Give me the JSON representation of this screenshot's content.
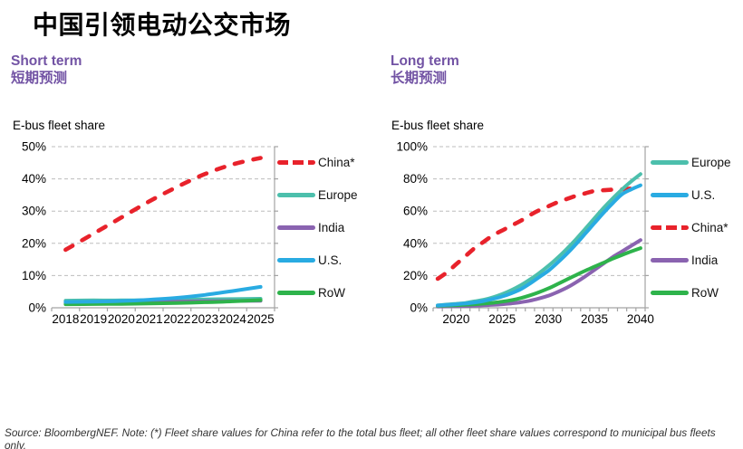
{
  "page": {
    "title": "中国引领电动公交市场",
    "source_note": "Source: BloombergNEF. Note: (*) Fleet share values for China refer to the total bus fleet; all other fleet share values correspond to municipal bus fleets only."
  },
  "colors": {
    "heading_purple": "#7253a4",
    "china_red": "#e8222b",
    "europe_teal": "#4cbfac",
    "us_blue": "#29abe2",
    "india_purple": "#8a63b0",
    "row_green": "#2eb34b",
    "grid_gray": "#bdbdbd",
    "axis_gray": "#a3a3a3",
    "tick_text": "#000000"
  },
  "chart_data": [
    {
      "id": "short-term",
      "type": "line",
      "title": "Short term",
      "title_zh": "短期预测",
      "axis_label": "E-bus fleet share",
      "x": [
        2018,
        2019,
        2020,
        2021,
        2022,
        2023,
        2024,
        2025
      ],
      "labeled_years": [
        2018,
        2019,
        2020,
        2021,
        2022,
        2023,
        2024,
        2025
      ],
      "ylim": [
        0,
        50
      ],
      "y_ticks": [
        0,
        10,
        20,
        30,
        40,
        50
      ],
      "grid": "horizontal-dashed",
      "legend_position": "right",
      "legend": [
        "China*",
        "Europe",
        "India",
        "U.S.",
        "RoW"
      ],
      "draw_order": [
        "China*",
        "Europe",
        "India",
        "RoW",
        "U.S."
      ],
      "series": [
        {
          "name": "China*",
          "color": "#e8222b",
          "dash": true,
          "values": [
            18,
            23,
            28,
            33,
            37.5,
            41.5,
            44.5,
            46.5
          ]
        },
        {
          "name": "Europe",
          "color": "#4cbfac",
          "dash": false,
          "values": [
            2.2,
            2.3,
            2.3,
            2.4,
            2.5,
            2.6,
            2.7,
            2.8
          ]
        },
        {
          "name": "India",
          "color": "#8a63b0",
          "dash": false,
          "values": [
            1.6,
            1.65,
            1.7,
            1.8,
            1.9,
            2.0,
            2.1,
            2.2
          ]
        },
        {
          "name": "U.S.",
          "color": "#29abe2",
          "dash": false,
          "values": [
            1.8,
            1.9,
            2.1,
            2.5,
            3.1,
            4.0,
            5.2,
            6.5
          ]
        },
        {
          "name": "RoW",
          "color": "#2eb34b",
          "dash": false,
          "values": [
            1.1,
            1.15,
            1.2,
            1.35,
            1.5,
            1.7,
            2.0,
            2.4
          ]
        }
      ]
    },
    {
      "id": "long-term",
      "type": "line",
      "title": "Long term",
      "title_zh": "长期预测",
      "axis_label": "E-bus fleet share",
      "x": [
        2018,
        2019,
        2020,
        2021,
        2022,
        2023,
        2024,
        2025,
        2026,
        2027,
        2028,
        2029,
        2030,
        2031,
        2032,
        2033,
        2034,
        2035,
        2036,
        2037,
        2038,
        2039,
        2040
      ],
      "labeled_years": [
        2020,
        2025,
        2030,
        2035,
        2040
      ],
      "ylim": [
        0,
        100
      ],
      "y_ticks": [
        0,
        20,
        40,
        60,
        80,
        100
      ],
      "grid": "horizontal-dashed",
      "legend_position": "right",
      "legend": [
        "Europe",
        "U.S.",
        "China*",
        "India",
        "RoW"
      ],
      "draw_order": [
        "China*",
        "India",
        "RoW",
        "Europe",
        "U.S."
      ],
      "series": [
        {
          "name": "Europe",
          "color": "#4cbfac",
          "dash": false,
          "values": [
            1.5,
            2,
            2.5,
            3,
            4,
            5,
            6.5,
            8.5,
            11,
            14,
            17.5,
            21.5,
            26,
            31,
            36.5,
            42.5,
            49,
            55.5,
            62,
            68,
            73.5,
            78.5,
            83
          ]
        },
        {
          "name": "U.S.",
          "color": "#29abe2",
          "dash": false,
          "values": [
            1.5,
            1.8,
            2.2,
            2.7,
            3.3,
            4.2,
            5.5,
            7,
            9,
            11.5,
            15,
            19,
            23,
            28,
            33.5,
            39.5,
            46,
            52.5,
            59,
            65,
            70.5,
            73.5,
            76
          ]
        },
        {
          "name": "China*",
          "color": "#e8222b",
          "dash": true,
          "values": [
            18,
            22,
            27,
            32,
            37,
            41,
            45,
            48,
            51,
            54,
            57.5,
            60.5,
            63,
            65.5,
            67.5,
            69.5,
            71,
            72.5,
            73,
            73.3,
            73.5,
            74,
            75
          ]
        },
        {
          "name": "India",
          "color": "#8a63b0",
          "dash": false,
          "values": [
            0.8,
            0.9,
            1,
            1.1,
            1.3,
            1.5,
            1.8,
            2.2,
            2.7,
            3.4,
            4.4,
            5.8,
            7.5,
            9.8,
            12.5,
            15.8,
            19.5,
            23.5,
            27.5,
            31.5,
            35,
            38.5,
            42
          ]
        },
        {
          "name": "RoW",
          "color": "#2eb34b",
          "dash": false,
          "values": [
            1.2,
            1.4,
            1.6,
            1.9,
            2.2,
            2.6,
            3.1,
            3.8,
            4.7,
            6,
            7.7,
            9.7,
            12,
            14.7,
            17.5,
            20.3,
            23,
            25.5,
            28,
            30.5,
            32.8,
            35,
            37
          ]
        }
      ]
    }
  ]
}
